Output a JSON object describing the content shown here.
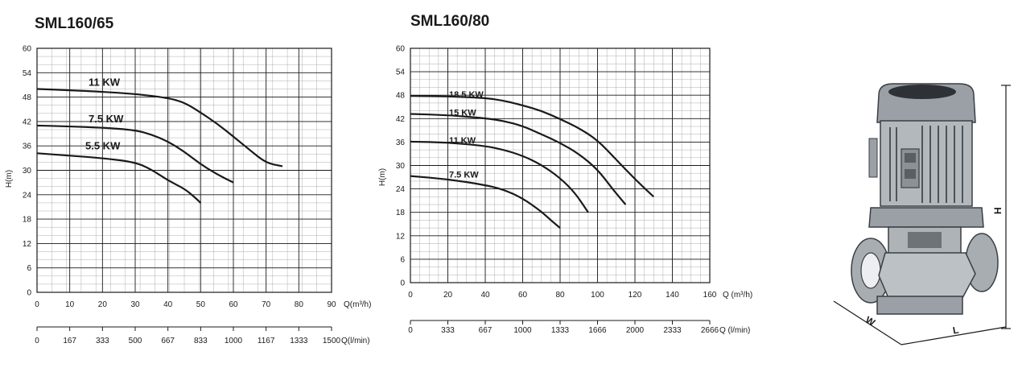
{
  "chart_data": [
    {
      "type": "line",
      "title": "SML160/65",
      "xlabel": "Q(m³/h)",
      "ylabel": "H(m)",
      "xlim": [
        0,
        90
      ],
      "ylim": [
        0,
        60
      ],
      "x_ticks": [
        0,
        10,
        20,
        30,
        40,
        50,
        60,
        70,
        80,
        90
      ],
      "y_ticks": [
        0,
        6,
        12,
        18,
        24,
        30,
        36,
        42,
        48,
        54,
        60
      ],
      "grid": true,
      "secondary_x": {
        "label": "Q(l/min)",
        "ticks": [
          "0",
          "167",
          "333",
          "500",
          "667",
          "833",
          "1000",
          "1167",
          "1333",
          "1500"
        ]
      },
      "series": [
        {
          "name": "11 KW",
          "x": [
            0,
            10,
            20,
            30,
            40,
            45,
            50,
            55,
            60,
            65,
            70,
            75
          ],
          "y": [
            50,
            49.7,
            49.3,
            48.8,
            47.8,
            46.7,
            44.2,
            41.5,
            38.3,
            35,
            31.8,
            31
          ]
        },
        {
          "name": "7.5 KW",
          "x": [
            0,
            10,
            20,
            30,
            35,
            40,
            45,
            50,
            55,
            60
          ],
          "y": [
            41,
            40.8,
            40.5,
            39.9,
            38.8,
            37.1,
            34.6,
            31.5,
            29,
            27
          ]
        },
        {
          "name": "5.5 KW",
          "x": [
            0,
            10,
            20,
            30,
            35,
            40,
            45,
            48,
            50
          ],
          "y": [
            34.2,
            33.6,
            33,
            32,
            30.2,
            27.5,
            25.5,
            23.5,
            22
          ]
        }
      ]
    },
    {
      "type": "line",
      "title": "SML160/80",
      "xlabel": "Q (m³/h)",
      "ylabel": "H(m)",
      "xlim": [
        0,
        160
      ],
      "ylim": [
        0,
        60
      ],
      "x_ticks": [
        0,
        20,
        40,
        60,
        80,
        100,
        120,
        140,
        160
      ],
      "y_ticks": [
        0,
        6,
        12,
        18,
        24,
        30,
        36,
        42,
        48,
        54,
        60
      ],
      "grid": true,
      "secondary_x": {
        "label": "Q (l/min)",
        "ticks": [
          "0",
          "333",
          "667",
          "1000",
          "1333",
          "1666",
          "2000",
          "2333",
          "2666"
        ]
      },
      "series": [
        {
          "name": "18.5 KW",
          "x": [
            0,
            20,
            40,
            50,
            60,
            70,
            80,
            90,
            100,
            110,
            120,
            130
          ],
          "y": [
            47.8,
            47.7,
            47.3,
            46.6,
            45.4,
            44,
            41.9,
            39.6,
            36.5,
            31.5,
            26.5,
            22
          ]
        },
        {
          "name": "15 KW",
          "x": [
            0,
            20,
            40,
            50,
            60,
            70,
            80,
            90,
            100,
            108,
            115
          ],
          "y": [
            43.2,
            42.9,
            42.1,
            41.4,
            40.1,
            38,
            35.8,
            33,
            29,
            24,
            20
          ]
        },
        {
          "name": "11 KW",
          "x": [
            0,
            20,
            40,
            50,
            60,
            70,
            80,
            88,
            95
          ],
          "y": [
            36.1,
            35.9,
            35,
            34,
            32.5,
            30.2,
            26.8,
            23,
            18
          ]
        },
        {
          "name": "7.5 KW",
          "x": [
            0,
            20,
            40,
            50,
            60,
            70,
            75,
            80
          ],
          "y": [
            27.3,
            26.5,
            25,
            23.8,
            21.6,
            18.2,
            16,
            14
          ]
        }
      ]
    }
  ],
  "dimensions": {
    "width": "W",
    "length": "L",
    "height": "H"
  },
  "colors": {
    "ink": "#1a1a1a",
    "grid": "#1a1a1a",
    "pump_body": "#9aa0a6",
    "pump_dark": "#3a3f44"
  },
  "icons": {
    "product": "pump-drawing"
  }
}
